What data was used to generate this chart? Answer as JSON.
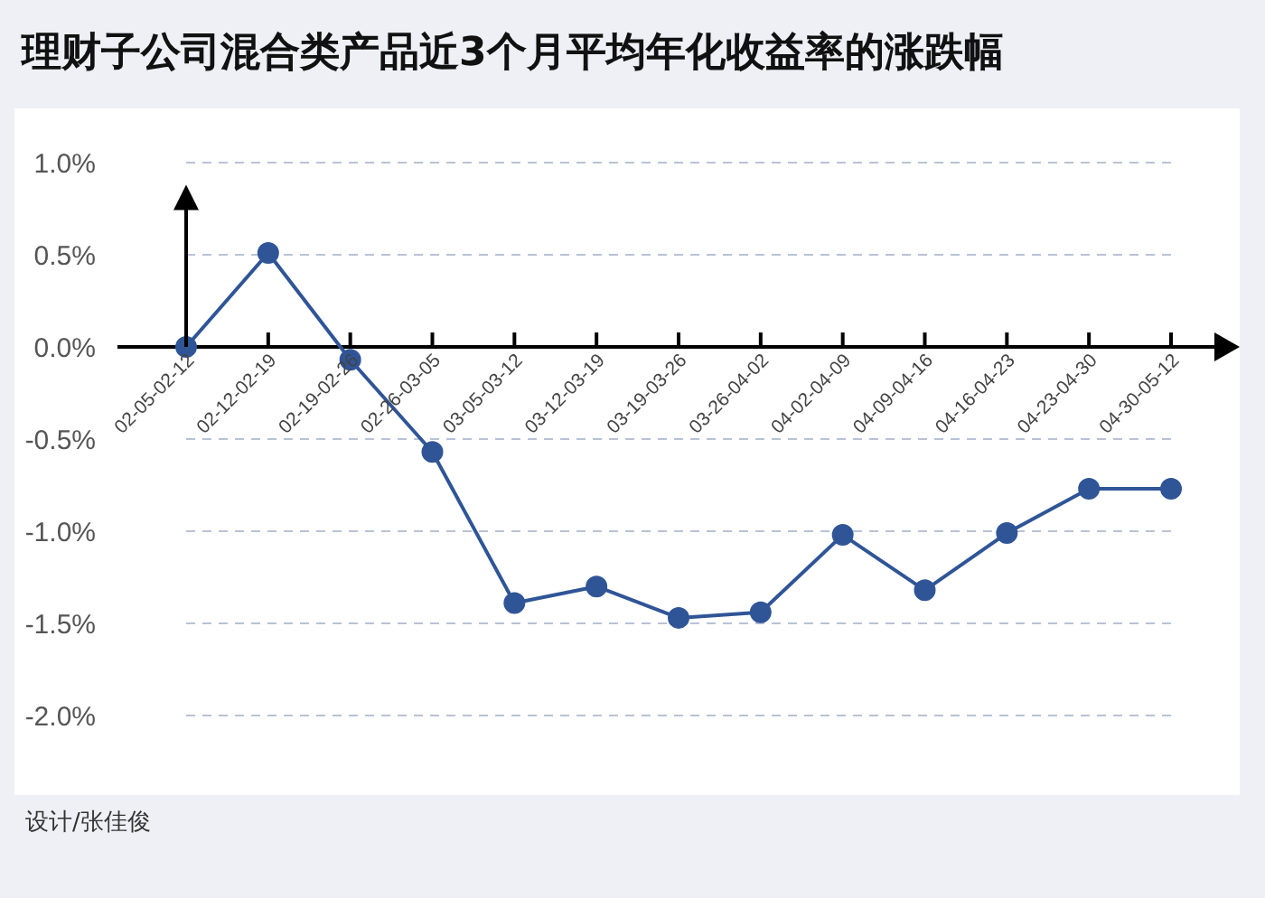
{
  "chart_data": {
    "type": "line",
    "title": "理财子公司混合类产品近3个月平均年化收益率的涨跌幅",
    "annotations": [
      "设计/张佳俊"
    ],
    "categories": [
      "02-05-02-12",
      "02-12-02-19",
      "02-19-02-26",
      "02-26-03-05",
      "03-05-03-12",
      "03-12-03-19",
      "03-19-03-26",
      "03-26-04-02",
      "04-02-04-09",
      "04-09-04-16",
      "04-16-04-23",
      "04-23-04-30",
      "04-30-05-12"
    ],
    "series": [
      {
        "color": "#2f5597",
        "values": [
          0.0,
          0.51,
          -0.07,
          -0.57,
          -1.39,
          -1.3,
          -1.47,
          -1.44,
          -1.02,
          -1.32,
          -1.01,
          -0.77,
          -0.77
        ]
      }
    ],
    "ylim": [
      -2.0,
      1.0
    ],
    "yticks": [
      {
        "value": -2.0,
        "label": "-2.0%"
      },
      {
        "value": -1.5,
        "label": "-1.5%"
      },
      {
        "value": -1.0,
        "label": "-1.0%"
      },
      {
        "value": -0.5,
        "label": "-0.5%"
      },
      {
        "value": 0,
        "label": "0.0%"
      },
      {
        "value": 0.5,
        "label": "0.5%"
      },
      {
        "value": 1.0,
        "label": "1.0%"
      }
    ],
    "grid": "y",
    "marker": "circle",
    "line_style": "solid",
    "legend": false
  }
}
